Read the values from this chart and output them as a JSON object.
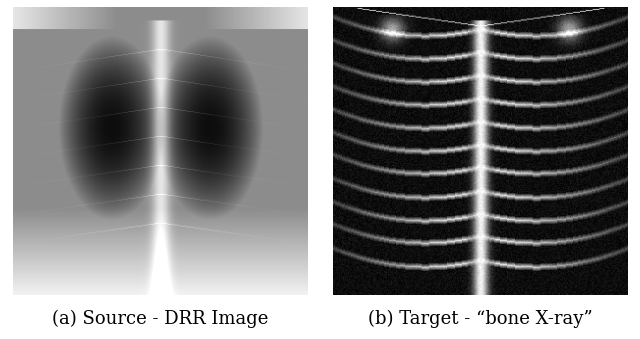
{
  "caption_left": "(a) Source - DRR Image",
  "caption_right": "(b) Target - “bone X-ray”",
  "bg_color": "#ffffff",
  "caption_fontsize": 13,
  "caption_font_family": "serif",
  "fig_width": 6.4,
  "fig_height": 3.39,
  "dpi": 100
}
